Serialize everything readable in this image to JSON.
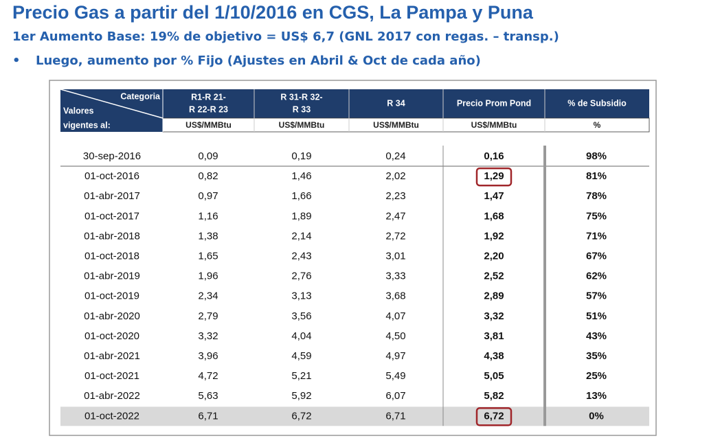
{
  "header": {
    "title": "Precio Gas a partir del 1/10/2016 en CGS, La Pampa y Puna",
    "subtitle": "1er Aumento Base: 19% de objetivo = US$ 6,7 (GNL 2017 con regas. – transp.)",
    "bullet": "Luego, aumento por % Fijo (Ajustes en Abril & Oct de cada año)"
  },
  "table": {
    "corner": {
      "top": "Categoria",
      "left": "Valores",
      "bottom": "vigentes al:"
    },
    "columns": [
      {
        "lines": [
          "R1-R 21-",
          "R 22-R 23"
        ],
        "unit": "US$/MMBtu"
      },
      {
        "lines": [
          "R 31-R 32-",
          "R 33"
        ],
        "unit": "US$/MMBtu"
      },
      {
        "lines": [
          "R 34"
        ],
        "unit": "US$/MMBtu"
      },
      {
        "lines": [
          "Precio Prom Pond"
        ],
        "unit": "US$/MMBtu"
      },
      {
        "lines": [
          "% de Subsidio"
        ],
        "unit": "%"
      }
    ],
    "rows": [
      [
        "30-sep-2016",
        "0,09",
        "0,19",
        "0,24",
        "0,16",
        "98%"
      ],
      [
        "01-oct-2016",
        "0,82",
        "1,46",
        "2,02",
        "1,29",
        "81%"
      ],
      [
        "01-abr-2017",
        "0,97",
        "1,66",
        "2,23",
        "1,47",
        "78%"
      ],
      [
        "01-oct-2017",
        "1,16",
        "1,89",
        "2,47",
        "1,68",
        "75%"
      ],
      [
        "01-abr-2018",
        "1,38",
        "2,14",
        "2,72",
        "1,92",
        "71%"
      ],
      [
        "01-oct-2018",
        "1,65",
        "2,43",
        "3,01",
        "2,20",
        "67%"
      ],
      [
        "01-abr-2019",
        "1,96",
        "2,76",
        "3,33",
        "2,52",
        "62%"
      ],
      [
        "01-oct-2019",
        "2,34",
        "3,13",
        "3,68",
        "2,89",
        "57%"
      ],
      [
        "01-abr-2020",
        "2,79",
        "3,56",
        "4,07",
        "3,32",
        "51%"
      ],
      [
        "01-oct-2020",
        "3,32",
        "4,04",
        "4,50",
        "3,81",
        "43%"
      ],
      [
        "01-abr-2021",
        "3,96",
        "4,59",
        "4,97",
        "4,38",
        "35%"
      ],
      [
        "01-oct-2021",
        "4,72",
        "5,21",
        "5,49",
        "5,05",
        "25%"
      ],
      [
        "01-abr-2022",
        "5,63",
        "5,92",
        "6,07",
        "5,82",
        "13%"
      ],
      [
        "01-oct-2022",
        "6,71",
        "6,72",
        "6,71",
        "6,72",
        "0%"
      ]
    ]
  }
}
